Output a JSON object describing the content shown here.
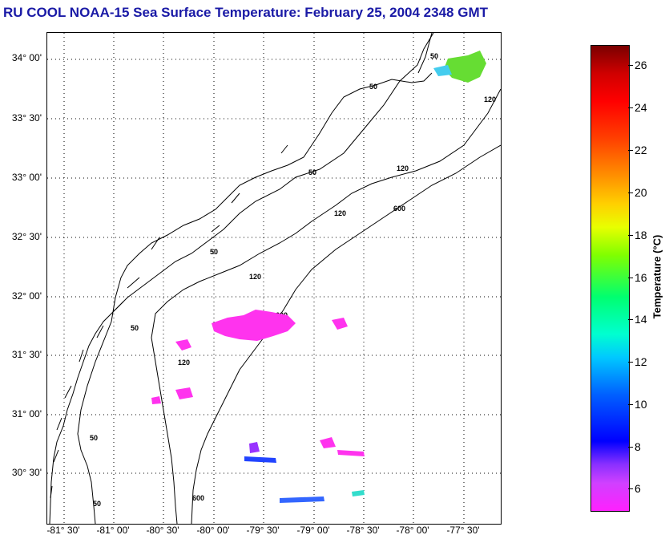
{
  "title": "RU COOL  NOAA-15  Sea Surface Temperature:  February 25, 2004 2348 GMT",
  "map": {
    "lat_labels": [
      "34° 00'",
      "33° 30'",
      "33° 00'",
      "32° 30'",
      "32° 00'",
      "31° 30'",
      "31° 00'",
      "30° 30'"
    ],
    "lon_labels": [
      "-81° 30'",
      "-81° 00'",
      "-80° 30'",
      "-80° 00'",
      "-79° 30'",
      "-79° 00'",
      "-78° 30'",
      "-78° 00'",
      "-77° 30'"
    ],
    "contour_labels": [
      "50",
      "50",
      "50",
      "50",
      "50",
      "50",
      "50",
      "120",
      "120",
      "120",
      "120",
      "120",
      "600",
      "600",
      "600"
    ],
    "grid": "dotted",
    "contours": [
      "coastline",
      "50 m isobath",
      "120 m isobath",
      "600 m isobath"
    ]
  },
  "colorbar": {
    "title": "Temperature (°C)",
    "ticks": [
      "26",
      "24",
      "22",
      "20",
      "18",
      "16",
      "14",
      "12",
      "10",
      "8",
      "6"
    ],
    "range": [
      5,
      27
    ],
    "colors": {
      "min": "#ff20ff",
      "max": "#7a0000"
    }
  }
}
